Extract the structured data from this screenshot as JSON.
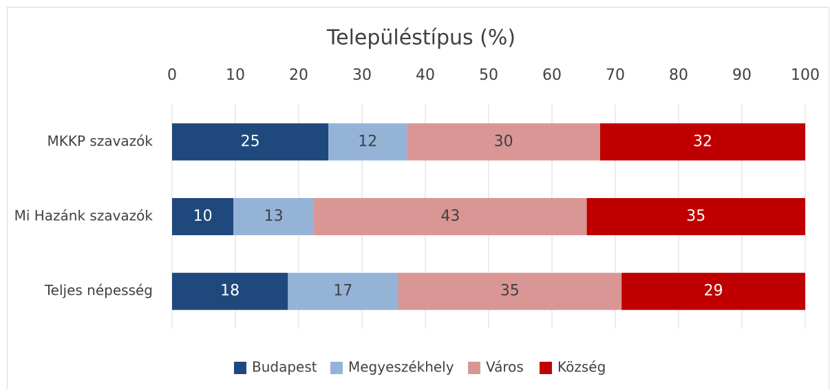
{
  "chart_data": {
    "type": "stacked-bar-horizontal",
    "title": "Településtípus (%)",
    "categories": [
      "MKKP szavazók",
      "Mi Hazánk szavazók",
      "Teljes népesség"
    ],
    "series": [
      {
        "name": "Budapest",
        "color": "#1f497d",
        "values": [
          24.7,
          9.7,
          18.3
        ],
        "value_labels": [
          "25",
          "10",
          "18"
        ]
      },
      {
        "name": "Megyeszékhely",
        "color": "#95b3d7",
        "values": [
          12.4,
          12.7,
          17.4
        ],
        "value_labels": [
          "12",
          "13",
          "17"
        ]
      },
      {
        "name": "Város",
        "color": "#d99694",
        "values": [
          30.5,
          43.1,
          35.3
        ],
        "value_labels": [
          "30",
          "43",
          "35"
        ]
      },
      {
        "name": "Község",
        "color": "#c00000",
        "values": [
          32.4,
          34.5,
          29.0
        ],
        "value_labels": [
          "32",
          "35",
          "29"
        ]
      }
    ],
    "xlim": [
      0,
      100
    ],
    "xticks": [
      0,
      10,
      20,
      30,
      40,
      50,
      60,
      70,
      80,
      90,
      100
    ],
    "grid": true,
    "legend": "bottom"
  }
}
